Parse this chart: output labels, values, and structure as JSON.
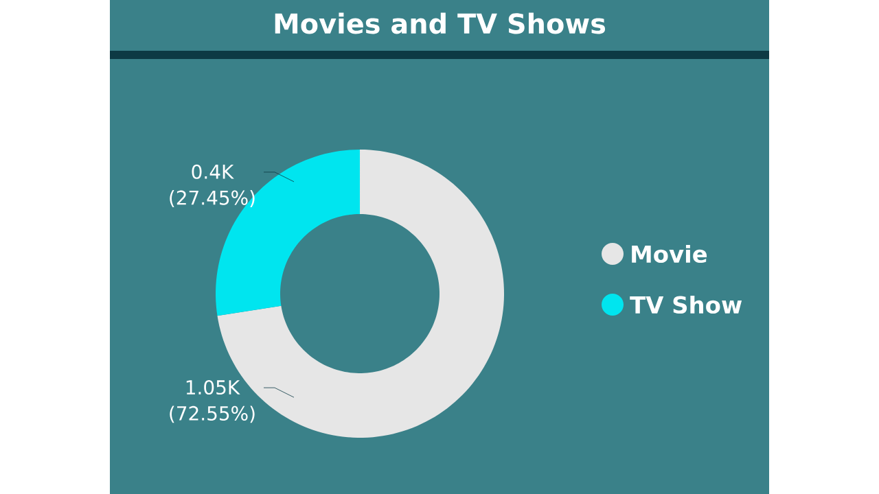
{
  "chart_data": {
    "type": "donut",
    "title": "Movies and TV Shows",
    "categories": [
      "Movie",
      "TV Show"
    ],
    "values": [
      72.55,
      27.45
    ],
    "value_labels": [
      "1.05K (72.55%)",
      "0.4K (27.45%)"
    ],
    "colors": [
      "#e6e6e6",
      "#00e5ef"
    ],
    "legend": "right"
  }
}
